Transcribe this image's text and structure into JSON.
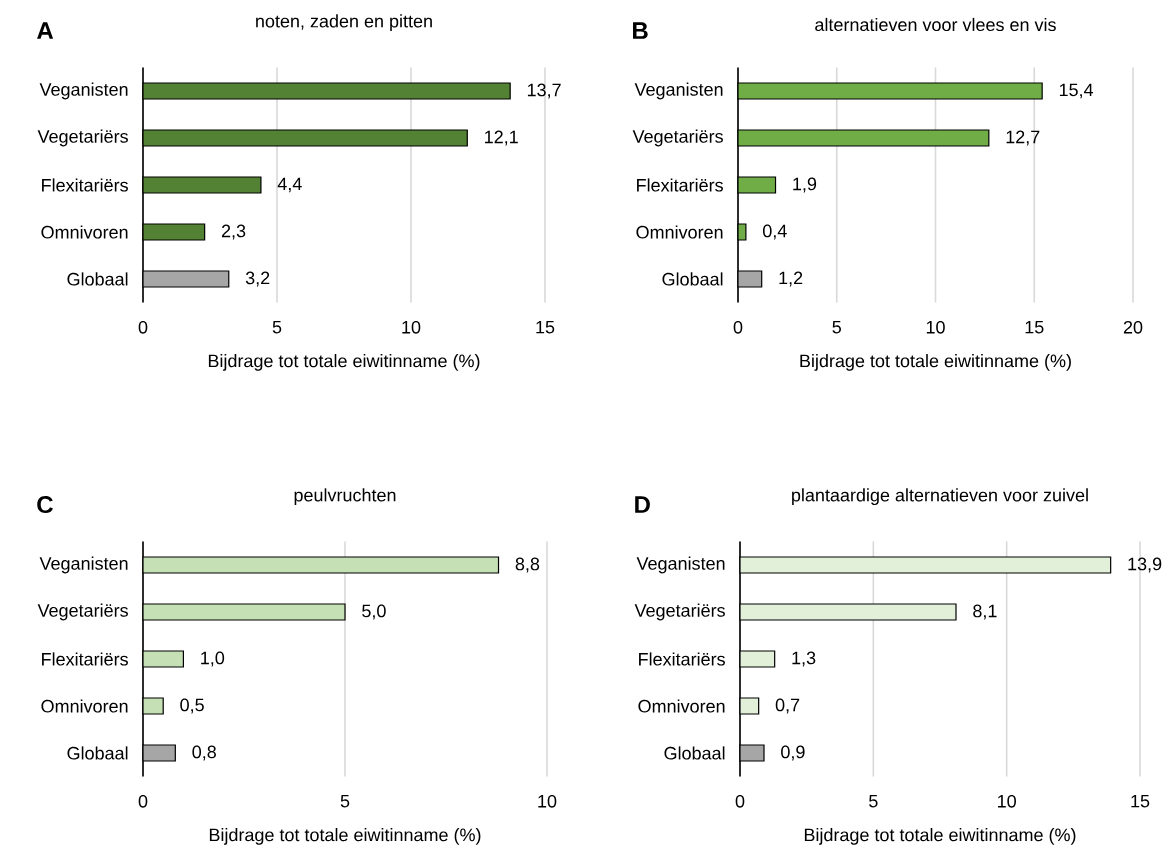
{
  "chart_data": [
    {
      "type": "bar",
      "orientation": "horizontal",
      "title": "noten, zaden en pitten",
      "annotations": [
        "A"
      ],
      "xlabel": "Bijdrage tot totale eiwitinname (%)",
      "categories": [
        "Veganisten",
        "Vegetariërs",
        "Flexitariërs",
        "Omnivoren",
        "Globaal"
      ],
      "values": [
        13.7,
        12.1,
        4.4,
        2.3,
        3.2
      ],
      "value_labels": [
        "13,7",
        "12,1",
        "4,4",
        "2,3",
        "3,2"
      ],
      "colors": [
        "#548235",
        "#548235",
        "#548235",
        "#548235",
        "#a6a6a6"
      ],
      "xlim": [
        0,
        15
      ],
      "xticks": [
        0,
        5,
        10,
        15
      ],
      "grid": "x"
    },
    {
      "type": "bar",
      "orientation": "horizontal",
      "title": "alternatieven voor vlees en vis",
      "annotations": [
        "B"
      ],
      "xlabel": "Bijdrage tot totale eiwitinname (%)",
      "categories": [
        "Veganisten",
        "Vegetariërs",
        "Flexitariërs",
        "Omnivoren",
        "Globaal"
      ],
      "values": [
        15.4,
        12.7,
        1.9,
        0.4,
        1.2
      ],
      "value_labels": [
        "15,4",
        "12,7",
        "1,9",
        "0,4",
        "1,2"
      ],
      "colors": [
        "#70ad47",
        "#70ad47",
        "#70ad47",
        "#70ad47",
        "#a6a6a6"
      ],
      "xlim": [
        0,
        20
      ],
      "xticks": [
        0,
        5,
        10,
        15,
        20
      ],
      "grid": "x"
    },
    {
      "type": "bar",
      "orientation": "horizontal",
      "title": "peulvruchten",
      "annotations": [
        "C"
      ],
      "xlabel": "Bijdrage tot totale eiwitinname (%)",
      "categories": [
        "Veganisten",
        "Vegetariërs",
        "Flexitariërs",
        "Omnivoren",
        "Globaal"
      ],
      "values": [
        8.8,
        5.0,
        1.0,
        0.5,
        0.8
      ],
      "value_labels": [
        "8,8",
        "5,0",
        "1,0",
        "0,5",
        "0,8"
      ],
      "colors": [
        "#c5e0b4",
        "#c5e0b4",
        "#c5e0b4",
        "#c5e0b4",
        "#a6a6a6"
      ],
      "xlim": [
        0,
        10
      ],
      "xticks": [
        0,
        5,
        10
      ],
      "grid": "x"
    },
    {
      "type": "bar",
      "orientation": "horizontal",
      "title": "plantaardige alternatieven voor zuivel",
      "annotations": [
        "D"
      ],
      "xlabel": "Bijdrage tot totale eiwitinname (%)",
      "categories": [
        "Veganisten",
        "Vegetariërs",
        "Flexitariërs",
        "Omnivoren",
        "Globaal"
      ],
      "values": [
        13.9,
        8.1,
        1.3,
        0.7,
        0.9
      ],
      "value_labels": [
        "13,9",
        "8,1",
        "1,3",
        "0,7",
        "0,9"
      ],
      "colors": [
        "#e2f0d9",
        "#e2f0d9",
        "#e2f0d9",
        "#e2f0d9",
        "#a6a6a6"
      ],
      "xlim": [
        0,
        15
      ],
      "xticks": [
        0,
        5,
        10,
        15
      ],
      "grid": "x"
    }
  ]
}
